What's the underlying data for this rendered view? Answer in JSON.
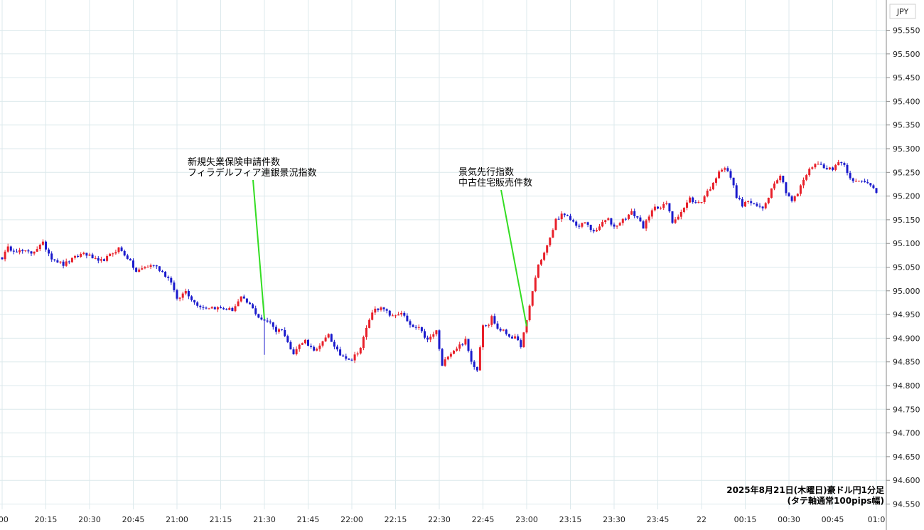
{
  "chart_data": {
    "type": "candlestick",
    "currency_label": "JPY",
    "y_ticks": [
      "95.550",
      "95.500",
      "95.450",
      "95.400",
      "95.350",
      "95.300",
      "95.250",
      "95.200",
      "95.150",
      "95.100",
      "95.050",
      "95.000",
      "94.950",
      "94.900",
      "94.850",
      "94.800",
      "94.750",
      "94.700",
      "94.650",
      "94.600",
      "94.550"
    ],
    "ylim": [
      94.55,
      95.55
    ],
    "x_ticks": [
      ":00",
      "20:15",
      "20:30",
      "20:45",
      "21:00",
      "21:15",
      "21:30",
      "21:45",
      "22:00",
      "22:15",
      "22:30",
      "22:45",
      "23:00",
      "23:15",
      "23:30",
      "23:45",
      "22",
      "00:15",
      "00:30",
      "00:45",
      "01:0"
    ],
    "x_tick_minutes": [
      0,
      15,
      30,
      45,
      60,
      75,
      90,
      105,
      120,
      135,
      150,
      165,
      180,
      195,
      210,
      225,
      240,
      255,
      270,
      285,
      300
    ],
    "grid": true,
    "colors": {
      "up": "#e8202a",
      "down": "#1a1acc",
      "annotation_line": "#33dd22",
      "grid": "#dce9ec"
    },
    "annotations": [
      {
        "lines": [
          "新規失業保険申請件数",
          "フィラデルフィア連銀景況指数"
        ],
        "minute": 90,
        "price": 94.94
      },
      {
        "lines": [
          "景気先行指数",
          "中古住宅販売件数"
        ],
        "minute": 180,
        "price": 94.925
      }
    ],
    "caption": [
      "2025年8月21日(木曜日)豪ドル円1分足",
      "(タテ軸通常100pips幅)"
    ],
    "anchors": [
      [
        0,
        95.07
      ],
      [
        2,
        95.09
      ],
      [
        5,
        95.085
      ],
      [
        10,
        95.08
      ],
      [
        14,
        95.1
      ],
      [
        17,
        95.07
      ],
      [
        21,
        95.055
      ],
      [
        25,
        95.07
      ],
      [
        28,
        95.08
      ],
      [
        31,
        95.07
      ],
      [
        33,
        95.06
      ],
      [
        36,
        95.07
      ],
      [
        40,
        95.09
      ],
      [
        43,
        95.07
      ],
      [
        46,
        95.04
      ],
      [
        49,
        95.05
      ],
      [
        52,
        95.055
      ],
      [
        55,
        95.04
      ],
      [
        58,
        95.02
      ],
      [
        60,
        94.98
      ],
      [
        63,
        95.0
      ],
      [
        66,
        94.975
      ],
      [
        69,
        94.965
      ],
      [
        72,
        94.965
      ],
      [
        76,
        94.962
      ],
      [
        79,
        94.96
      ],
      [
        82,
        94.985
      ],
      [
        85,
        94.97
      ],
      [
        88,
        94.945
      ],
      [
        90,
        94.935
      ],
      [
        92,
        94.935
      ],
      [
        94,
        94.915
      ],
      [
        96,
        94.92
      ],
      [
        98,
        94.89
      ],
      [
        100,
        94.87
      ],
      [
        102,
        94.885
      ],
      [
        104,
        94.895
      ],
      [
        106,
        94.88
      ],
      [
        108,
        94.875
      ],
      [
        110,
        94.89
      ],
      [
        112,
        94.91
      ],
      [
        114,
        94.88
      ],
      [
        116,
        94.865
      ],
      [
        118,
        94.86
      ],
      [
        120,
        94.855
      ],
      [
        123,
        94.88
      ],
      [
        126,
        94.94
      ],
      [
        128,
        94.965
      ],
      [
        131,
        94.96
      ],
      [
        134,
        94.945
      ],
      [
        137,
        94.955
      ],
      [
        140,
        94.925
      ],
      [
        143,
        94.92
      ],
      [
        146,
        94.895
      ],
      [
        149,
        94.915
      ],
      [
        151,
        94.84
      ],
      [
        153,
        94.865
      ],
      [
        156,
        94.88
      ],
      [
        159,
        94.895
      ],
      [
        161,
        94.85
      ],
      [
        163,
        94.835
      ],
      [
        165,
        94.93
      ],
      [
        167,
        94.93
      ],
      [
        168,
        94.945
      ],
      [
        170,
        94.92
      ],
      [
        172,
        94.915
      ],
      [
        174,
        94.905
      ],
      [
        176,
        94.9
      ],
      [
        178,
        94.885
      ],
      [
        180,
        94.935
      ],
      [
        182,
        95.0
      ],
      [
        184,
        95.055
      ],
      [
        186,
        95.08
      ],
      [
        188,
        95.11
      ],
      [
        190,
        95.15
      ],
      [
        192,
        95.16
      ],
      [
        194,
        95.155
      ],
      [
        196,
        95.145
      ],
      [
        198,
        95.135
      ],
      [
        200,
        95.145
      ],
      [
        202,
        95.13
      ],
      [
        204,
        95.125
      ],
      [
        206,
        95.145
      ],
      [
        208,
        95.15
      ],
      [
        210,
        95.135
      ],
      [
        212,
        95.145
      ],
      [
        214,
        95.155
      ],
      [
        216,
        95.165
      ],
      [
        218,
        95.155
      ],
      [
        220,
        95.135
      ],
      [
        222,
        95.155
      ],
      [
        224,
        95.18
      ],
      [
        226,
        95.175
      ],
      [
        228,
        95.185
      ],
      [
        230,
        95.145
      ],
      [
        232,
        95.16
      ],
      [
        234,
        95.175
      ],
      [
        236,
        95.195
      ],
      [
        238,
        95.185
      ],
      [
        240,
        95.19
      ],
      [
        242,
        95.21
      ],
      [
        244,
        95.225
      ],
      [
        246,
        95.255
      ],
      [
        248,
        95.26
      ],
      [
        250,
        95.24
      ],
      [
        252,
        95.2
      ],
      [
        254,
        95.18
      ],
      [
        256,
        95.19
      ],
      [
        258,
        95.18
      ],
      [
        261,
        95.175
      ],
      [
        263,
        95.2
      ],
      [
        265,
        95.23
      ],
      [
        267,
        95.245
      ],
      [
        269,
        95.21
      ],
      [
        271,
        95.19
      ],
      [
        273,
        95.205
      ],
      [
        275,
        95.235
      ],
      [
        277,
        95.255
      ],
      [
        279,
        95.27
      ],
      [
        281,
        95.265
      ],
      [
        283,
        95.26
      ],
      [
        285,
        95.255
      ],
      [
        287,
        95.275
      ],
      [
        289,
        95.265
      ],
      [
        291,
        95.24
      ],
      [
        293,
        95.23
      ],
      [
        295,
        95.23
      ],
      [
        298,
        95.225
      ],
      [
        300,
        95.21
      ]
    ]
  }
}
